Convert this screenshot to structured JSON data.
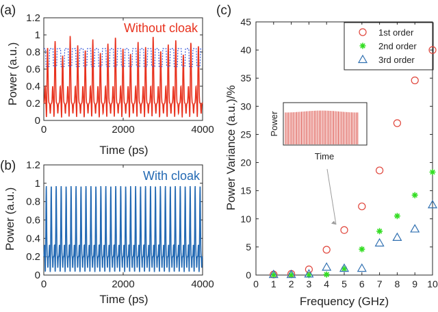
{
  "panel_labels": {
    "a": "(a)",
    "b": "(b)",
    "c": "(c)"
  },
  "colors": {
    "red": "#e8321e",
    "blue_dotted": "#3a5bd9",
    "blue": "#2369b3",
    "green": "#33dd22",
    "marker_red": "#e0443a",
    "marker_blue": "#2f6fb0",
    "axis": "#262626",
    "arrow": "#9a9a9a"
  },
  "chart_data": [
    {
      "id": "a",
      "type": "line",
      "annotation": "Without cloak",
      "xlabel": "Time (ps)",
      "ylabel": "Power (a.u.)",
      "xlim": [
        0,
        4000
      ],
      "ylim": [
        0,
        1.2
      ],
      "xticks": [
        0,
        2000,
        4000
      ],
      "yticks": [
        0,
        0.2,
        0.4,
        0.6,
        0.8,
        1,
        1.2
      ],
      "series": [
        {
          "style": "solid-red",
          "period_ps": 190,
          "peak_max": 0.99,
          "peak_min": 0.71,
          "secondary_peak": 0.4,
          "baseline": 0.2,
          "trough_min": 0.0
        },
        {
          "style": "dotted-blue",
          "period_ps": 190,
          "high": 0.84,
          "low": 0.63
        }
      ]
    },
    {
      "id": "b",
      "type": "line",
      "annotation": "With cloak",
      "xlabel": "Time (ps)",
      "ylabel": "Power (a.u.)",
      "xlim": [
        0,
        4000
      ],
      "ylim": [
        0,
        1.2
      ],
      "xticks": [
        0,
        2000,
        4000
      ],
      "yticks": [
        0,
        0.2,
        0.4,
        0.6,
        0.8,
        1,
        1.2
      ],
      "series": [
        {
          "style": "solid-blue",
          "period_ps": 125,
          "peak": 0.97,
          "secondary_peak": 0.33,
          "mid": 0.2,
          "trough": 0.02
        }
      ]
    },
    {
      "id": "c",
      "type": "scatter",
      "xlabel": "Frequency (GHz)",
      "ylabel": "Power Variance (a.u.)/%",
      "xlim": [
        0,
        10
      ],
      "ylim": [
        0,
        45
      ],
      "xticks": [
        0,
        1,
        2,
        3,
        4,
        5,
        6,
        7,
        8,
        9,
        10
      ],
      "yticks": [
        0,
        5,
        10,
        15,
        20,
        25,
        30,
        35,
        40,
        45
      ],
      "legend_position": "top-right",
      "inset": {
        "xlabel": "Time",
        "ylabel": "Power"
      },
      "series": [
        {
          "name": "1st order",
          "marker": "circle",
          "x": [
            1,
            2,
            3,
            4,
            5,
            6,
            7,
            8,
            9,
            10
          ],
          "y": [
            0.1,
            0.2,
            1.0,
            4.5,
            8.0,
            12.2,
            18.6,
            27.0,
            34.6,
            40.0
          ]
        },
        {
          "name": "2nd order",
          "marker": "star",
          "x": [
            1,
            2,
            3,
            4,
            5,
            6,
            7,
            8,
            9,
            10
          ],
          "y": [
            0.0,
            0.0,
            0.0,
            0.1,
            1.1,
            4.6,
            7.8,
            10.5,
            14.2,
            18.3
          ]
        },
        {
          "name": "3rd order",
          "marker": "triangle",
          "x": [
            1,
            2,
            3,
            4,
            5,
            6,
            7,
            8,
            9,
            10
          ],
          "y": [
            0.1,
            0.1,
            0.2,
            1.4,
            1.2,
            1.2,
            5.7,
            6.7,
            8.2,
            12.5
          ]
        }
      ]
    }
  ]
}
